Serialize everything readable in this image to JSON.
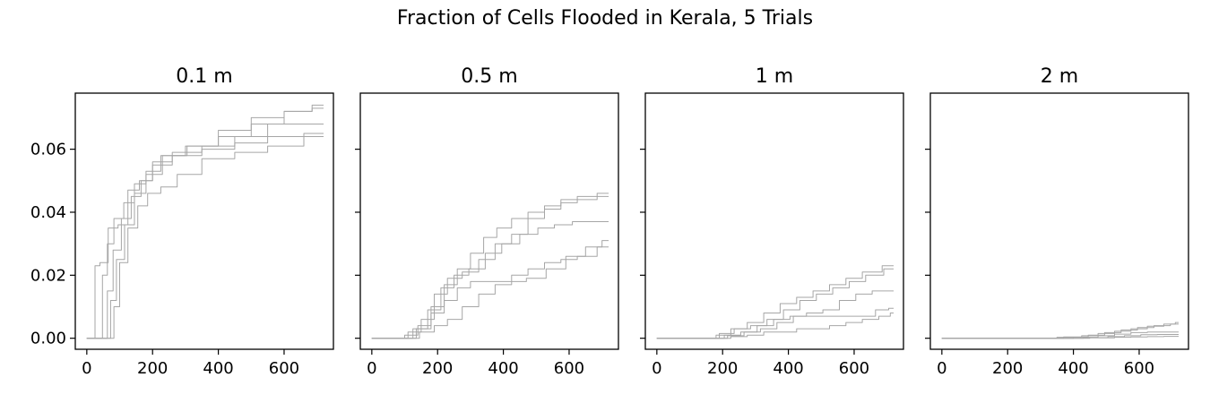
{
  "figure": {
    "title": "Fraction of Cells Flooded in Kerala, 5 Trials"
  },
  "chart_data": [
    {
      "type": "line",
      "title": "0.1 m",
      "xlim": [
        -35,
        750
      ],
      "ylim": [
        -0.0035,
        0.0778
      ],
      "xticks": [
        0,
        200,
        400,
        600
      ],
      "yticks": [
        0.0,
        0.02,
        0.04,
        0.06
      ],
      "ytick_labels": [
        "0.00",
        "0.02",
        "0.04",
        "0.06"
      ],
      "series_color": "#a6a6a6",
      "series": [
        {
          "x": [
            0,
            20,
            30,
            50,
            80,
            110,
            140,
            180,
            220,
            300,
            400,
            500,
            600,
            720
          ],
          "y": [
            0,
            0,
            0.023,
            0.024,
            0.035,
            0.036,
            0.047,
            0.05,
            0.056,
            0.059,
            0.061,
            0.064,
            0.068,
            0.068
          ]
        },
        {
          "x": [
            0,
            40,
            55,
            70,
            95,
            130,
            160,
            200,
            250,
            350,
            450,
            550,
            650,
            720
          ],
          "y": [
            0,
            0,
            0.02,
            0.03,
            0.038,
            0.043,
            0.049,
            0.053,
            0.058,
            0.061,
            0.064,
            0.068,
            0.072,
            0.073
          ]
        },
        {
          "x": [
            0,
            55,
            70,
            90,
            120,
            150,
            180,
            220,
            300,
            400,
            500,
            600,
            720
          ],
          "y": [
            0,
            0,
            0.015,
            0.028,
            0.038,
            0.045,
            0.05,
            0.055,
            0.058,
            0.06,
            0.062,
            0.064,
            0.065
          ]
        },
        {
          "x": [
            0,
            65,
            80,
            100,
            130,
            160,
            200,
            260,
            350,
            450,
            550,
            650,
            720
          ],
          "y": [
            0,
            0,
            0.012,
            0.025,
            0.036,
            0.046,
            0.052,
            0.058,
            0.061,
            0.066,
            0.07,
            0.072,
            0.074
          ]
        },
        {
          "x": [
            0,
            75,
            90,
            110,
            140,
            170,
            200,
            250,
            300,
            400,
            500,
            600,
            720
          ],
          "y": [
            0,
            0,
            0.01,
            0.024,
            0.035,
            0.042,
            0.046,
            0.048,
            0.052,
            0.057,
            0.059,
            0.061,
            0.064
          ]
        }
      ]
    },
    {
      "type": "line",
      "title": "0.5 m",
      "xlim": [
        -35,
        750
      ],
      "ylim": [
        -0.0035,
        0.0778
      ],
      "xticks": [
        0,
        200,
        400,
        600
      ],
      "yticks": [
        0.0,
        0.02,
        0.04,
        0.06
      ],
      "ytick_labels": [
        "",
        "",
        "",
        ""
      ],
      "series_color": "#a6a6a6",
      "series": [
        {
          "x": [
            0,
            80,
            120,
            160,
            200,
            240,
            280,
            320,
            360,
            400,
            450,
            500,
            550,
            600,
            650,
            720
          ],
          "y": [
            0,
            0,
            0.001,
            0.004,
            0.01,
            0.017,
            0.022,
            0.027,
            0.032,
            0.035,
            0.038,
            0.04,
            0.042,
            0.044,
            0.045,
            0.046
          ]
        },
        {
          "x": [
            0,
            90,
            130,
            170,
            210,
            250,
            300,
            350,
            400,
            450,
            500,
            550,
            600,
            650,
            720
          ],
          "y": [
            0,
            0,
            0.002,
            0.006,
            0.014,
            0.019,
            0.021,
            0.025,
            0.03,
            0.033,
            0.038,
            0.041,
            0.043,
            0.044,
            0.045
          ]
        },
        {
          "x": [
            0,
            100,
            150,
            190,
            230,
            270,
            320,
            370,
            420,
            480,
            530,
            580,
            640,
            720
          ],
          "y": [
            0,
            0,
            0.003,
            0.009,
            0.016,
            0.02,
            0.022,
            0.027,
            0.03,
            0.033,
            0.035,
            0.036,
            0.037,
            0.037
          ]
        },
        {
          "x": [
            0,
            110,
            160,
            200,
            240,
            280,
            320,
            380,
            440,
            500,
            560,
            620,
            680,
            720
          ],
          "y": [
            0,
            0,
            0.003,
            0.008,
            0.012,
            0.016,
            0.018,
            0.018,
            0.018,
            0.019,
            0.022,
            0.026,
            0.029,
            0.031
          ]
        },
        {
          "x": [
            0,
            120,
            170,
            210,
            250,
            300,
            350,
            400,
            450,
            500,
            550,
            600,
            650,
            720
          ],
          "y": [
            0,
            0,
            0.002,
            0.004,
            0.006,
            0.01,
            0.014,
            0.017,
            0.02,
            0.022,
            0.024,
            0.025,
            0.026,
            0.029
          ]
        }
      ]
    },
    {
      "type": "line",
      "title": "1 m",
      "xlim": [
        -35,
        750
      ],
      "ylim": [
        -0.0035,
        0.0778
      ],
      "xticks": [
        0,
        200,
        400,
        600
      ],
      "yticks": [
        0.0,
        0.02,
        0.04,
        0.06
      ],
      "ytick_labels": [
        "",
        "",
        "",
        ""
      ],
      "series_color": "#a6a6a6",
      "series": [
        {
          "x": [
            0,
            160,
            200,
            250,
            300,
            350,
            400,
            450,
            500,
            550,
            600,
            650,
            720
          ],
          "y": [
            0,
            0,
            0.001,
            0.003,
            0.005,
            0.008,
            0.011,
            0.013,
            0.015,
            0.017,
            0.019,
            0.021,
            0.023
          ]
        },
        {
          "x": [
            0,
            170,
            210,
            260,
            310,
            360,
            410,
            460,
            510,
            560,
            610,
            660,
            720
          ],
          "y": [
            0,
            0,
            0.0015,
            0.003,
            0.004,
            0.006,
            0.009,
            0.012,
            0.014,
            0.016,
            0.018,
            0.02,
            0.022
          ]
        },
        {
          "x": [
            0,
            180,
            230,
            280,
            330,
            380,
            430,
            480,
            530,
            580,
            630,
            680,
            720
          ],
          "y": [
            0,
            0,
            0.001,
            0.002,
            0.004,
            0.006,
            0.007,
            0.008,
            0.009,
            0.012,
            0.014,
            0.015,
            0.015
          ]
        },
        {
          "x": [
            0,
            190,
            240,
            290,
            340,
            390,
            440,
            490,
            540,
            590,
            640,
            690,
            720
          ],
          "y": [
            0,
            0,
            0.0008,
            0.002,
            0.003,
            0.005,
            0.007,
            0.007,
            0.007,
            0.007,
            0.007,
            0.009,
            0.0095
          ]
        },
        {
          "x": [
            0,
            200,
            250,
            300,
            350,
            400,
            450,
            500,
            550,
            600,
            650,
            700,
            720
          ],
          "y": [
            0,
            0,
            0.0005,
            0.001,
            0.002,
            0.002,
            0.003,
            0.003,
            0.004,
            0.005,
            0.006,
            0.007,
            0.008
          ]
        }
      ]
    },
    {
      "type": "line",
      "title": "2 m",
      "xlim": [
        -35,
        750
      ],
      "ylim": [
        -0.0035,
        0.0778
      ],
      "xticks": [
        0,
        200,
        400,
        600
      ],
      "yticks": [
        0.0,
        0.02,
        0.04,
        0.06
      ],
      "ytick_labels": [
        "",
        "",
        "",
        ""
      ],
      "series_color": "#a6a6a6",
      "series": [
        {
          "x": [
            0,
            300,
            400,
            450,
            500,
            550,
            600,
            650,
            700,
            720
          ],
          "y": [
            0,
            0,
            0.0003,
            0.0008,
            0.0015,
            0.0022,
            0.003,
            0.0038,
            0.0045,
            0.005
          ]
        },
        {
          "x": [
            0,
            320,
            420,
            470,
            520,
            570,
            620,
            670,
            720
          ],
          "y": [
            0,
            0,
            0.0004,
            0.001,
            0.0018,
            0.0026,
            0.0034,
            0.004,
            0.0045
          ]
        },
        {
          "x": [
            0,
            350,
            450,
            500,
            550,
            600,
            650,
            700,
            720
          ],
          "y": [
            0,
            0,
            0.0003,
            0.0008,
            0.0013,
            0.0018,
            0.002,
            0.002,
            0.002
          ]
        },
        {
          "x": [
            0,
            380,
            480,
            530,
            580,
            630,
            680,
            720
          ],
          "y": [
            0,
            0,
            0.0002,
            0.0005,
            0.0008,
            0.0011,
            0.0012,
            0.0012
          ]
        },
        {
          "x": [
            0,
            400,
            500,
            550,
            600,
            650,
            700,
            720
          ],
          "y": [
            0,
            0,
            0.0001,
            0.0003,
            0.0004,
            0.0005,
            0.0006,
            0.0006
          ]
        }
      ]
    }
  ]
}
